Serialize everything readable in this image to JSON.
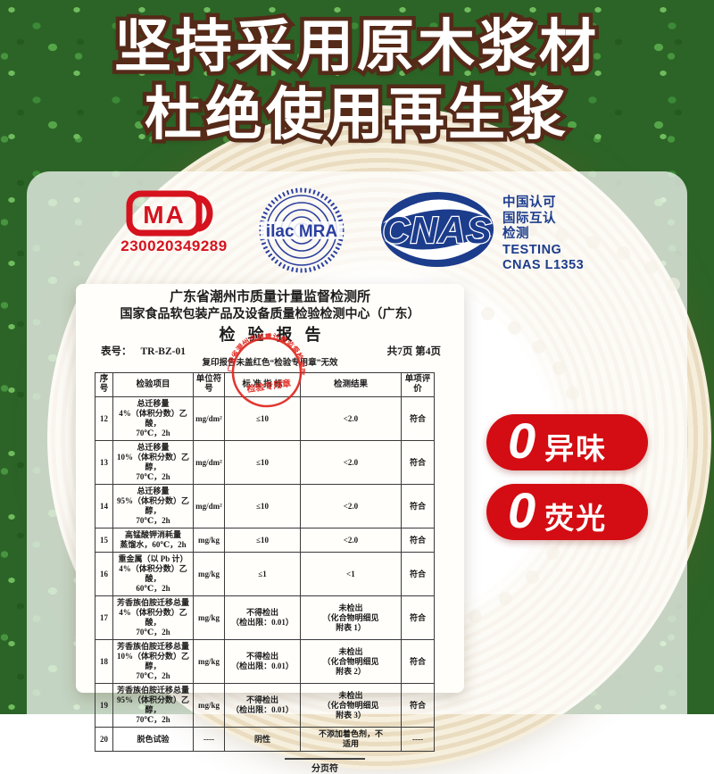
{
  "title": {
    "line1": "坚持采用原木浆材",
    "line2": "杜绝使用再生浆"
  },
  "certifications": {
    "cma": {
      "letters": "MA",
      "number": "230020349289"
    },
    "ilac": {
      "label": "ilac MRA"
    },
    "cnas": {
      "acronym": "CNAS",
      "lines": [
        "中国认可",
        "国际互认",
        "检测",
        "TESTING",
        "CNAS L1353"
      ]
    }
  },
  "report": {
    "org_line1": "广东省潮州市质量计量监督检测所",
    "org_line2": "国家食品软包装产品及设备质量检验检测中心（广东）",
    "doc_title": "检验报告",
    "form_label": "表号：",
    "form_no": "TR-BZ-01",
    "page_info": "共7页  第4页",
    "notice": "复印报告未盖红色“检验专用章”无效",
    "seal": {
      "ring_text": "广东省潮州市质量计量监督检测所",
      "center_text": "检验专用章"
    },
    "table": {
      "headers": [
        "序号",
        "检验项目",
        "单位符号",
        "标 准 指 标",
        "检测结果",
        "单项评价"
      ],
      "rows": [
        {
          "no": "12",
          "item": "总迁移量\n4%（体积分数）乙酸，\n70℃，2h",
          "unit": "mg/dm²",
          "standard": "≤10",
          "result": "<2.0",
          "evaluation": "符合"
        },
        {
          "no": "13",
          "item": "总迁移量\n10%（体积分数）乙醇，\n70℃，2h",
          "unit": "mg/dm²",
          "standard": "≤10",
          "result": "<2.0",
          "evaluation": "符合"
        },
        {
          "no": "14",
          "item": "总迁移量\n95%（体积分数）乙醇，\n70℃，2h",
          "unit": "mg/dm²",
          "standard": "≤10",
          "result": "<2.0",
          "evaluation": "符合"
        },
        {
          "no": "15",
          "item": "高锰酸钾消耗量\n蒸馏水，60℃，2h",
          "unit": "mg/kg",
          "standard": "≤10",
          "result": "<2.0",
          "evaluation": "符合"
        },
        {
          "no": "16",
          "item": "重金属（以 Pb 计）\n4%（体积分数）乙酸，\n60℃，2h",
          "unit": "mg/kg",
          "standard": "≤1",
          "result": "<1",
          "evaluation": "符合"
        },
        {
          "no": "17",
          "item": "芳香族伯胺迁移总量\n4%（体积分数）乙酸，\n70℃，2h",
          "unit": "mg/kg",
          "standard": "不得检出\n（检出限：0.01）",
          "result": "未检出\n（化合物明细见\n附表 1）",
          "evaluation": "符合"
        },
        {
          "no": "18",
          "item": "芳香族伯胺迁移总量\n10%（体积分数）乙醇，\n70℃，2h",
          "unit": "mg/kg",
          "standard": "不得检出\n（检出限：0.01）",
          "result": "未检出\n（化合物明细见\n附表 2）",
          "evaluation": "符合"
        },
        {
          "no": "19",
          "item": "芳香族伯胺迁移总量\n95%（体积分数）乙醇，\n70℃，2h",
          "unit": "mg/kg",
          "standard": "不得检出\n（检出限：0.01）",
          "result": "未检出\n（化合物明细见\n附表 3）",
          "evaluation": "符合"
        },
        {
          "no": "20",
          "item": "脱色试验",
          "unit": "----",
          "standard": "阴性",
          "result": "不添加着色剂，不\n适用",
          "evaluation": "----"
        }
      ]
    },
    "footer_caption": "分页符"
  },
  "badges": [
    {
      "zero": "0",
      "label": "异味"
    },
    {
      "zero": "0",
      "label": "荧光"
    }
  ],
  "colors": {
    "badge_red": "#d30d13",
    "cma_red": "#d5121e",
    "cnas_navy": "#1c3c8c",
    "ilac_blue": "#2b3f9e",
    "seal_red": "#e0261f",
    "title_outline": "#552a18"
  }
}
